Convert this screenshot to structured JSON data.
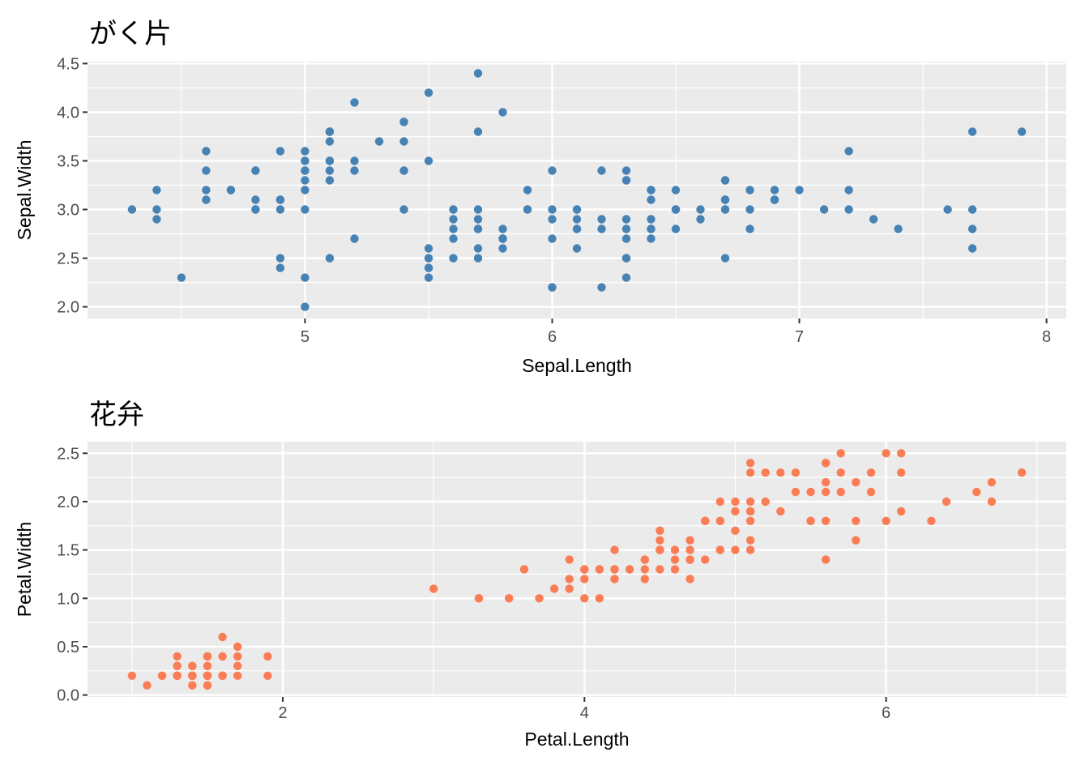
{
  "style": {
    "page_bg": "#FFFFFF",
    "panel_bg": "#EBEBEB",
    "grid_color": "#FFFFFF",
    "tick_color": "#333333",
    "tick_label_color": "#4D4D4D",
    "text_color": "#000000"
  },
  "chart_data": [
    {
      "type": "scatter",
      "title": "がく片",
      "xlabel": "Sepal.Length",
      "ylabel": "Sepal.Width",
      "point_color": "#4682B4",
      "xlim": [
        4.12,
        8.08
      ],
      "ylim": [
        1.88,
        4.52
      ],
      "xticks": [
        5,
        6,
        7,
        8
      ],
      "xtick_labels": [
        "5",
        "6",
        "7",
        "8"
      ],
      "yticks": [
        2.0,
        2.5,
        3.0,
        3.5,
        4.0,
        4.5
      ],
      "ytick_labels": [
        "2.0",
        "2.5",
        "3.0",
        "3.5",
        "4.0",
        "4.5"
      ],
      "x_minor": [
        4.5,
        5.5,
        6.5,
        7.5
      ],
      "y_minor": [
        2.25,
        2.75,
        3.25,
        3.75,
        4.25
      ],
      "grid": "major and minor, white on gray",
      "legend": "none",
      "x": [
        5.1,
        4.9,
        4.7,
        4.6,
        5.0,
        5.4,
        4.6,
        5.0,
        4.4,
        4.9,
        5.4,
        4.8,
        4.8,
        4.3,
        5.8,
        5.7,
        5.4,
        5.1,
        5.7,
        5.1,
        5.4,
        5.1,
        4.6,
        5.1,
        4.8,
        5.0,
        5.0,
        5.2,
        5.2,
        4.7,
        4.8,
        5.4,
        5.2,
        5.5,
        4.9,
        5.0,
        5.5,
        4.9,
        4.4,
        5.1,
        5.0,
        4.5,
        4.4,
        5.0,
        5.1,
        4.8,
        5.1,
        4.6,
        5.3,
        5.0,
        7.0,
        6.4,
        6.9,
        5.5,
        6.5,
        5.7,
        6.3,
        4.9,
        6.6,
        5.2,
        5.0,
        5.9,
        6.0,
        6.1,
        5.6,
        6.7,
        5.6,
        5.8,
        6.2,
        5.6,
        5.9,
        6.1,
        6.3,
        6.1,
        6.4,
        6.6,
        6.8,
        6.7,
        6.0,
        5.7,
        5.5,
        5.5,
        5.8,
        6.0,
        5.4,
        6.0,
        6.7,
        6.3,
        5.6,
        5.5,
        5.5,
        6.1,
        5.8,
        5.0,
        5.6,
        5.7,
        5.7,
        6.2,
        5.1,
        5.7,
        6.3,
        5.8,
        7.1,
        6.3,
        6.5,
        7.6,
        4.9,
        7.3,
        6.7,
        7.2,
        6.5,
        6.4,
        6.8,
        5.7,
        5.8,
        6.4,
        6.5,
        7.7,
        7.7,
        6.0,
        6.9,
        5.6,
        7.7,
        6.3,
        6.7,
        7.2,
        6.2,
        6.1,
        6.4,
        7.2,
        7.4,
        7.9,
        6.4,
        6.3,
        6.1,
        7.7,
        6.3,
        6.4,
        6.0,
        6.9,
        6.7,
        6.9,
        5.8,
        6.8,
        6.7,
        6.7,
        6.3,
        6.5,
        6.2,
        5.9
      ],
      "y": [
        3.5,
        3.0,
        3.2,
        3.1,
        3.6,
        3.9,
        3.4,
        3.4,
        2.9,
        3.1,
        3.7,
        3.4,
        3.0,
        3.0,
        4.0,
        4.4,
        3.9,
        3.5,
        3.8,
        3.8,
        3.4,
        3.7,
        3.6,
        3.3,
        3.4,
        3.0,
        3.4,
        3.5,
        3.4,
        3.2,
        3.1,
        3.4,
        4.1,
        4.2,
        3.1,
        3.2,
        3.5,
        3.6,
        3.0,
        3.4,
        3.5,
        2.3,
        3.2,
        3.5,
        3.8,
        3.0,
        3.8,
        3.2,
        3.7,
        3.3,
        3.2,
        3.2,
        3.1,
        2.3,
        2.8,
        2.8,
        3.3,
        2.4,
        2.9,
        2.7,
        2.0,
        3.0,
        2.2,
        2.9,
        2.9,
        3.1,
        3.0,
        2.7,
        2.2,
        2.5,
        3.2,
        2.8,
        2.5,
        2.8,
        2.9,
        3.0,
        2.8,
        3.0,
        2.9,
        2.6,
        2.4,
        2.4,
        2.7,
        2.7,
        3.0,
        3.4,
        3.1,
        2.3,
        3.0,
        2.5,
        2.6,
        3.0,
        2.6,
        2.3,
        2.7,
        3.0,
        2.9,
        2.9,
        2.5,
        2.8,
        3.3,
        2.7,
        3.0,
        2.9,
        3.0,
        3.0,
        2.5,
        2.9,
        2.5,
        3.6,
        3.2,
        2.7,
        3.0,
        2.5,
        2.8,
        3.2,
        3.0,
        3.8,
        2.6,
        2.2,
        3.2,
        2.8,
        2.8,
        2.7,
        3.3,
        3.2,
        2.8,
        3.0,
        2.8,
        3.0,
        2.8,
        3.8,
        2.8,
        2.8,
        2.6,
        3.0,
        3.4,
        3.1,
        3.0,
        3.1,
        3.1,
        3.1,
        2.7,
        3.2,
        3.3,
        3.0,
        2.5,
        3.0,
        3.4,
        3.0
      ]
    },
    {
      "type": "scatter",
      "title": "花弁",
      "xlabel": "Petal.Length",
      "ylabel": "Petal.Width",
      "point_color": "#FA7D55",
      "xlim": [
        0.705,
        7.195
      ],
      "ylim": [
        -0.02,
        2.62
      ],
      "xticks": [
        2,
        4,
        6
      ],
      "xtick_labels": [
        "2",
        "4",
        "6"
      ],
      "yticks": [
        0.0,
        0.5,
        1.0,
        1.5,
        2.0,
        2.5
      ],
      "ytick_labels": [
        "0.0",
        "0.5",
        "1.0",
        "1.5",
        "2.0",
        "2.5"
      ],
      "x_minor": [
        1,
        3,
        5,
        7
      ],
      "y_minor": [
        0.25,
        0.75,
        1.25,
        1.75,
        2.25
      ],
      "grid": "major and minor, white on gray",
      "legend": "none",
      "x": [
        1.4,
        1.4,
        1.3,
        1.5,
        1.4,
        1.7,
        1.4,
        1.5,
        1.4,
        1.5,
        1.5,
        1.6,
        1.4,
        1.1,
        1.2,
        1.5,
        1.3,
        1.4,
        1.7,
        1.5,
        1.7,
        1.5,
        1.0,
        1.7,
        1.9,
        1.6,
        1.6,
        1.5,
        1.4,
        1.6,
        1.6,
        1.5,
        1.5,
        1.4,
        1.5,
        1.2,
        1.3,
        1.4,
        1.3,
        1.5,
        1.3,
        1.3,
        1.3,
        1.6,
        1.9,
        1.4,
        1.6,
        1.4,
        1.5,
        1.4,
        4.7,
        4.5,
        4.9,
        4.0,
        4.6,
        4.5,
        4.7,
        3.3,
        4.6,
        3.9,
        3.5,
        4.2,
        4.0,
        4.7,
        3.6,
        4.4,
        4.5,
        4.1,
        4.5,
        3.9,
        4.8,
        4.0,
        4.9,
        4.7,
        4.3,
        4.4,
        4.8,
        5.0,
        4.5,
        3.5,
        3.8,
        3.7,
        3.9,
        5.1,
        4.5,
        4.5,
        4.7,
        4.4,
        4.1,
        4.0,
        4.4,
        4.6,
        4.0,
        3.3,
        4.2,
        4.2,
        4.2,
        4.3,
        3.0,
        4.1,
        6.0,
        5.1,
        5.9,
        5.6,
        5.8,
        6.6,
        4.5,
        6.3,
        5.8,
        6.1,
        5.1,
        5.3,
        5.5,
        5.0,
        5.1,
        5.3,
        5.5,
        6.7,
        6.9,
        5.0,
        5.7,
        4.9,
        6.7,
        4.9,
        5.7,
        6.0,
        4.8,
        4.9,
        5.6,
        5.8,
        6.1,
        6.4,
        5.6,
        5.1,
        5.6,
        6.1,
        5.6,
        5.5,
        4.8,
        5.4,
        5.6,
        5.1,
        5.1,
        5.9,
        5.7,
        5.2,
        5.0,
        5.2,
        5.4,
        5.1
      ],
      "y": [
        0.2,
        0.2,
        0.2,
        0.2,
        0.2,
        0.4,
        0.3,
        0.2,
        0.2,
        0.1,
        0.2,
        0.2,
        0.1,
        0.1,
        0.2,
        0.4,
        0.4,
        0.3,
        0.3,
        0.3,
        0.2,
        0.4,
        0.2,
        0.5,
        0.2,
        0.2,
        0.4,
        0.2,
        0.2,
        0.2,
        0.2,
        0.4,
        0.1,
        0.2,
        0.2,
        0.2,
        0.2,
        0.1,
        0.2,
        0.2,
        0.3,
        0.3,
        0.2,
        0.6,
        0.4,
        0.3,
        0.2,
        0.2,
        0.2,
        0.2,
        1.4,
        1.5,
        1.5,
        1.3,
        1.5,
        1.3,
        1.6,
        1.0,
        1.3,
        1.4,
        1.0,
        1.5,
        1.0,
        1.4,
        1.3,
        1.4,
        1.5,
        1.0,
        1.5,
        1.1,
        1.8,
        1.3,
        1.5,
        1.2,
        1.3,
        1.4,
        1.4,
        1.7,
        1.5,
        1.0,
        1.1,
        1.0,
        1.2,
        1.6,
        1.5,
        1.6,
        1.5,
        1.3,
        1.3,
        1.3,
        1.2,
        1.4,
        1.2,
        1.0,
        1.3,
        1.2,
        1.3,
        1.3,
        1.1,
        1.3,
        2.5,
        1.9,
        2.1,
        1.8,
        2.2,
        2.1,
        1.7,
        1.8,
        1.8,
        2.5,
        2.0,
        1.9,
        2.1,
        2.0,
        2.4,
        2.3,
        1.8,
        2.2,
        2.3,
        1.5,
        2.3,
        2.0,
        2.0,
        1.8,
        2.1,
        1.8,
        1.8,
        1.8,
        2.1,
        1.6,
        1.9,
        2.0,
        2.2,
        1.5,
        1.4,
        2.3,
        2.4,
        1.8,
        1.8,
        2.1,
        2.4,
        2.3,
        1.9,
        2.3,
        2.5,
        2.3,
        1.9,
        2.0,
        2.3,
        1.8
      ]
    }
  ]
}
